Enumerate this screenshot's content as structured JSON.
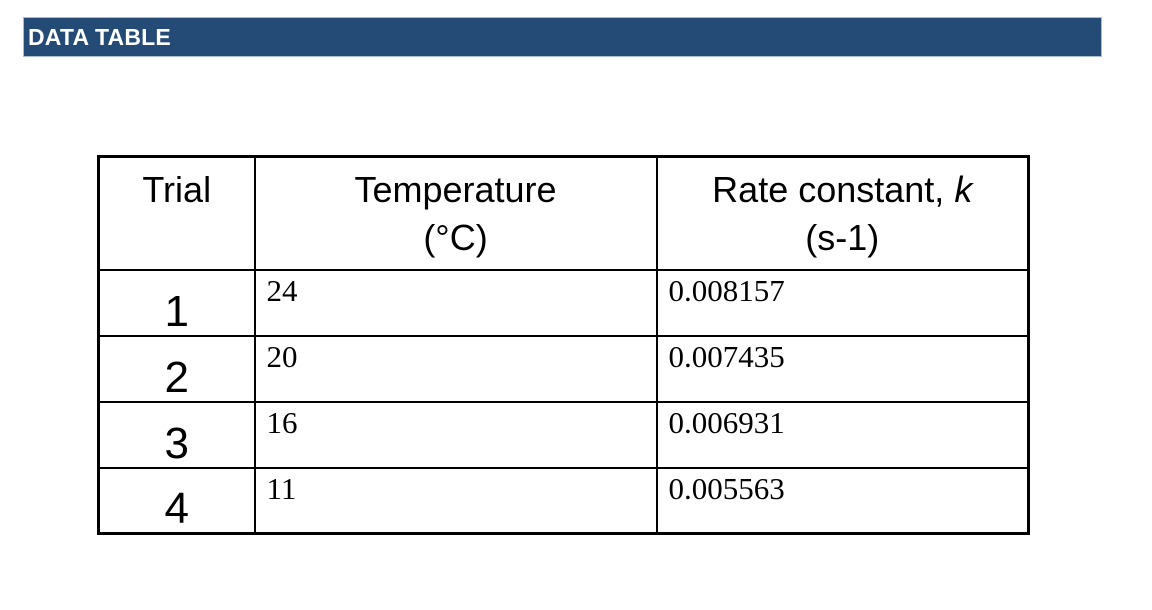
{
  "header_bar": {
    "label": "DATA TABLE",
    "background": "#234b76",
    "border_color": "#aabdd3",
    "text_color": "#ffffff"
  },
  "table": {
    "border_color": "#000000",
    "header": {
      "trial_label": "Trial",
      "temperature_label": "Temperature",
      "temperature_unit": "(°C)",
      "rate_label_prefix": "Rate constant, ",
      "rate_symbol": "k",
      "rate_unit": "(s-1)"
    },
    "rows": [
      {
        "trial": "1",
        "temperature": "24",
        "rate_constant": "0.008157"
      },
      {
        "trial": "2",
        "temperature": "20",
        "rate_constant": "0.007435"
      },
      {
        "trial": "3",
        "temperature": "16",
        "rate_constant": "0.006931"
      },
      {
        "trial": "4",
        "temperature": "11",
        "rate_constant": "0.005563"
      }
    ]
  }
}
